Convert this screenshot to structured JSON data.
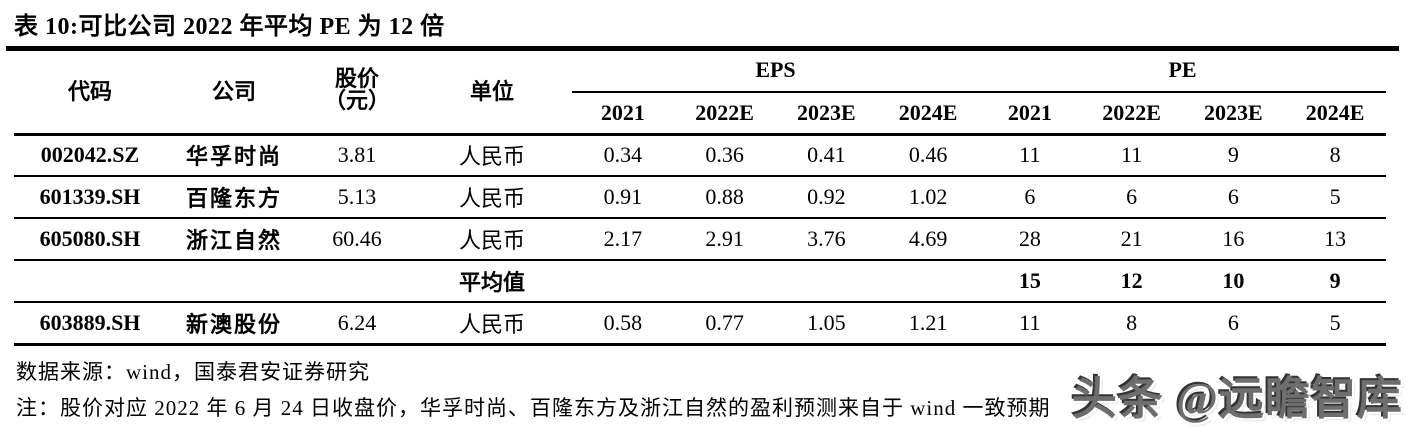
{
  "title": "表 10:可比公司 2022 年平均 PE 为 12 倍",
  "table": {
    "headers": {
      "code": "代码",
      "company": "公司",
      "price_line1": "股价",
      "price_line2": "（元）",
      "unit": "单位",
      "eps_group": "EPS",
      "pe_group": "PE",
      "years": [
        "2021",
        "2022E",
        "2023E",
        "2024E"
      ]
    },
    "rows": [
      {
        "code": "002042.SZ",
        "company": "华孚时尚",
        "price": "3.81",
        "unit": "人民币",
        "eps": [
          "0.34",
          "0.36",
          "0.41",
          "0.46"
        ],
        "pe": [
          "11",
          "11",
          "9",
          "8"
        ]
      },
      {
        "code": "601339.SH",
        "company": "百隆东方",
        "price": "5.13",
        "unit": "人民币",
        "eps": [
          "0.91",
          "0.88",
          "0.92",
          "1.02"
        ],
        "pe": [
          "6",
          "6",
          "6",
          "5"
        ]
      },
      {
        "code": "605080.SH",
        "company": "浙江自然",
        "price": "60.46",
        "unit": "人民币",
        "eps": [
          "2.17",
          "2.91",
          "3.76",
          "4.69"
        ],
        "pe": [
          "28",
          "21",
          "16",
          "13"
        ]
      },
      {
        "code": "",
        "company": "",
        "price": "",
        "unit": "平均值",
        "eps": [
          "",
          "",
          "",
          ""
        ],
        "pe": [
          "15",
          "12",
          "10",
          "9"
        ]
      },
      {
        "code": "603889.SH",
        "company": "新澳股份",
        "price": "6.24",
        "unit": "人民币",
        "eps": [
          "0.58",
          "0.77",
          "1.05",
          "1.21"
        ],
        "pe": [
          "11",
          "8",
          "6",
          "5"
        ]
      }
    ]
  },
  "footer": {
    "source": "数据来源：wind，国泰君安证券研究",
    "note": "注：股价对应 2022 年 6 月 24 日收盘价，华孚时尚、百隆东方及浙江自然的盈利预测来自于 wind 一致预期"
  },
  "watermark": "头条 @远瞻智库",
  "colors": {
    "text": "#000000",
    "rule": "#000000",
    "watermark": "#6e6e6e"
  }
}
